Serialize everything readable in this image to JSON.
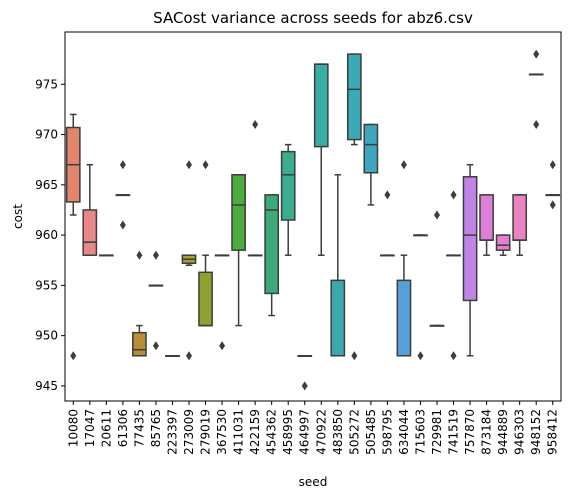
{
  "chart_data": {
    "type": "box",
    "title": "SACost variance across seeds for abz6.csv",
    "xlabel": "seed",
    "ylabel": "cost",
    "ylim": [
      943.5,
      980.2
    ],
    "yticks": [
      945,
      950,
      955,
      960,
      965,
      970,
      975
    ],
    "grid": false,
    "legend": "none",
    "boxes": [
      {
        "seed": "10080",
        "color": "#e1856d",
        "q1": 963.3,
        "median": 967,
        "q3": 970.7,
        "whisker_low": 962,
        "whisker_high": 972,
        "outliers": [
          948
        ]
      },
      {
        "seed": "17047",
        "color": "#e88886",
        "q1": 958,
        "median": 959.3,
        "q3": 962.5,
        "whisker_low": 958,
        "whisker_high": 967,
        "outliers": []
      },
      {
        "seed": "20611",
        "color": "#c7883d",
        "q1": 958,
        "median": 958,
        "q3": 958,
        "whisker_low": 958,
        "whisker_high": 958,
        "outliers": []
      },
      {
        "seed": "61306",
        "color": "#c68a3c",
        "q1": 964,
        "median": 964,
        "q3": 964,
        "whisker_low": 964,
        "whisker_high": 964,
        "outliers": [
          967,
          961
        ]
      },
      {
        "seed": "77435",
        "color": "#b98d36",
        "q1": 948,
        "median": 948.6,
        "q3": 950.3,
        "whisker_low": 948,
        "whisker_high": 951,
        "outliers": [
          958
        ]
      },
      {
        "seed": "85765",
        "color": "#b0942f",
        "q1": 955,
        "median": 955,
        "q3": 955,
        "whisker_low": 955,
        "whisker_high": 955,
        "outliers": [
          958,
          949
        ]
      },
      {
        "seed": "223397",
        "color": "#a39a2e",
        "q1": 948,
        "median": 948,
        "q3": 948,
        "whisker_low": 948,
        "whisker_high": 948,
        "outliers": []
      },
      {
        "seed": "273009",
        "color": "#a8a12e",
        "q1": 957.2,
        "median": 957.6,
        "q3": 958,
        "whisker_low": 957,
        "whisker_high": 958,
        "outliers": [
          967,
          948
        ]
      },
      {
        "seed": "279019",
        "color": "#8ea32f",
        "q1": 951,
        "median": 951,
        "q3": 956.3,
        "whisker_low": 951,
        "whisker_high": 958,
        "outliers": [
          967
        ]
      },
      {
        "seed": "367530",
        "color": "#75a836",
        "q1": 958,
        "median": 958,
        "q3": 958,
        "whisker_low": 958,
        "whisker_high": 958,
        "outliers": [
          949
        ]
      },
      {
        "seed": "411031",
        "color": "#4cac40",
        "q1": 958.5,
        "median": 963,
        "q3": 966,
        "whisker_low": 951,
        "whisker_high": 966,
        "outliers": []
      },
      {
        "seed": "422159",
        "color": "#3eac5e",
        "q1": 958,
        "median": 958,
        "q3": 958,
        "whisker_low": 958,
        "whisker_high": 958,
        "outliers": [
          971
        ]
      },
      {
        "seed": "454362",
        "color": "#3cab78",
        "q1": 954.2,
        "median": 962.5,
        "q3": 964,
        "whisker_low": 952,
        "whisker_high": 964,
        "outliers": []
      },
      {
        "seed": "458995",
        "color": "#3aad8c",
        "q1": 961.5,
        "median": 966,
        "q3": 968.3,
        "whisker_low": 958,
        "whisker_high": 969,
        "outliers": []
      },
      {
        "seed": "464997",
        "color": "#3bac9a",
        "q1": 948,
        "median": 948,
        "q3": 948,
        "whisker_low": 948,
        "whisker_high": 948,
        "outliers": [
          945
        ]
      },
      {
        "seed": "470922",
        "color": "#3aada6",
        "q1": 968.8,
        "median": 977,
        "q3": 977,
        "whisker_low": 958,
        "whisker_high": 977,
        "outliers": []
      },
      {
        "seed": "483850",
        "color": "#3aa8ad",
        "q1": 948,
        "median": 948,
        "q3": 955.5,
        "whisker_low": 948,
        "whisker_high": 966,
        "outliers": []
      },
      {
        "seed": "505272",
        "color": "#3ba9b6",
        "q1": 969.5,
        "median": 974.5,
        "q3": 978,
        "whisker_low": 969,
        "whisker_high": 978,
        "outliers": [
          948
        ]
      },
      {
        "seed": "505485",
        "color": "#3ea6be",
        "q1": 966.2,
        "median": 969,
        "q3": 971,
        "whisker_low": 963,
        "whisker_high": 971,
        "outliers": []
      },
      {
        "seed": "598795",
        "color": "#40a5c5",
        "q1": 958,
        "median": 958,
        "q3": 958,
        "whisker_low": 958,
        "whisker_high": 958,
        "outliers": [
          964
        ]
      },
      {
        "seed": "634044",
        "color": "#56a0d9",
        "q1": 948,
        "median": 948,
        "q3": 955.5,
        "whisker_low": 948,
        "whisker_high": 958,
        "outliers": [
          967
        ]
      },
      {
        "seed": "715603",
        "color": "#6b9ae0",
        "q1": 960,
        "median": 960,
        "q3": 960,
        "whisker_low": 960,
        "whisker_high": 960,
        "outliers": [
          948
        ]
      },
      {
        "seed": "729981",
        "color": "#8b95e6",
        "q1": 951,
        "median": 951,
        "q3": 951,
        "whisker_low": 951,
        "whisker_high": 951,
        "outliers": [
          962
        ]
      },
      {
        "seed": "741519",
        "color": "#a18ce8",
        "q1": 958,
        "median": 958,
        "q3": 958,
        "whisker_low": 958,
        "whisker_high": 958,
        "outliers": [
          964,
          948
        ]
      },
      {
        "seed": "757870",
        "color": "#c183e6",
        "q1": 953.5,
        "median": 960,
        "q3": 965.8,
        "whisker_low": 948,
        "whisker_high": 967,
        "outliers": []
      },
      {
        "seed": "873184",
        "color": "#dd7fd8",
        "q1": 959.5,
        "median": 959.5,
        "q3": 964,
        "whisker_low": 958,
        "whisker_high": 964,
        "outliers": []
      },
      {
        "seed": "944889",
        "color": "#e67fd0",
        "q1": 958.5,
        "median": 959,
        "q3": 960,
        "whisker_low": 958,
        "whisker_high": 960,
        "outliers": []
      },
      {
        "seed": "946303",
        "color": "#eb82c4",
        "q1": 959.5,
        "median": 959.5,
        "q3": 964,
        "whisker_low": 958,
        "whisker_high": 964,
        "outliers": []
      },
      {
        "seed": "948152",
        "color": "#ee81bb",
        "q1": 976,
        "median": 976,
        "q3": 976,
        "whisker_low": 976,
        "whisker_high": 976,
        "outliers": [
          978,
          971
        ]
      },
      {
        "seed": "958412",
        "color": "#f084ad",
        "q1": 964,
        "median": 964,
        "q3": 964,
        "whisker_low": 964,
        "whisker_high": 964,
        "outliers": [
          967,
          963
        ]
      }
    ]
  }
}
